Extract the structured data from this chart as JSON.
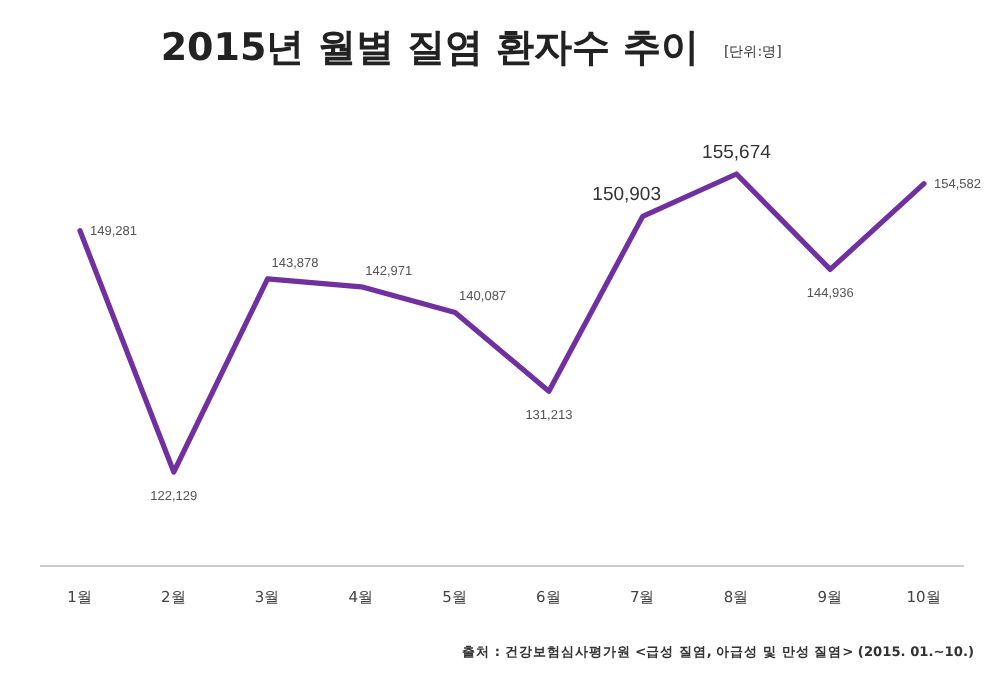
{
  "chart_data": {
    "type": "line",
    "title": "2015년 월별 질염 환자수 추이",
    "categories": [
      "1월",
      "2월",
      "3월",
      "4월",
      "5월",
      "6월",
      "7월",
      "8월",
      "9월",
      "10월"
    ],
    "series": [
      {
        "color": "#7030a0",
        "values": [
          149281,
          122129,
          143878,
          142971,
          140087,
          131213,
          150903,
          155674,
          144936,
          154582
        ],
        "value_labels": [
          "149,281",
          "122,129",
          "143,878",
          "142,971",
          "140,087",
          "131,213",
          "150,903",
          "155,674",
          "144,936",
          "154,582"
        ]
      }
    ],
    "annotations": [
      "[단위:명]",
      "출처 : 건강보험심사평가원 <급성 질염, 아급성 및 만성 질염> (2015. 01.~10.)"
    ]
  }
}
